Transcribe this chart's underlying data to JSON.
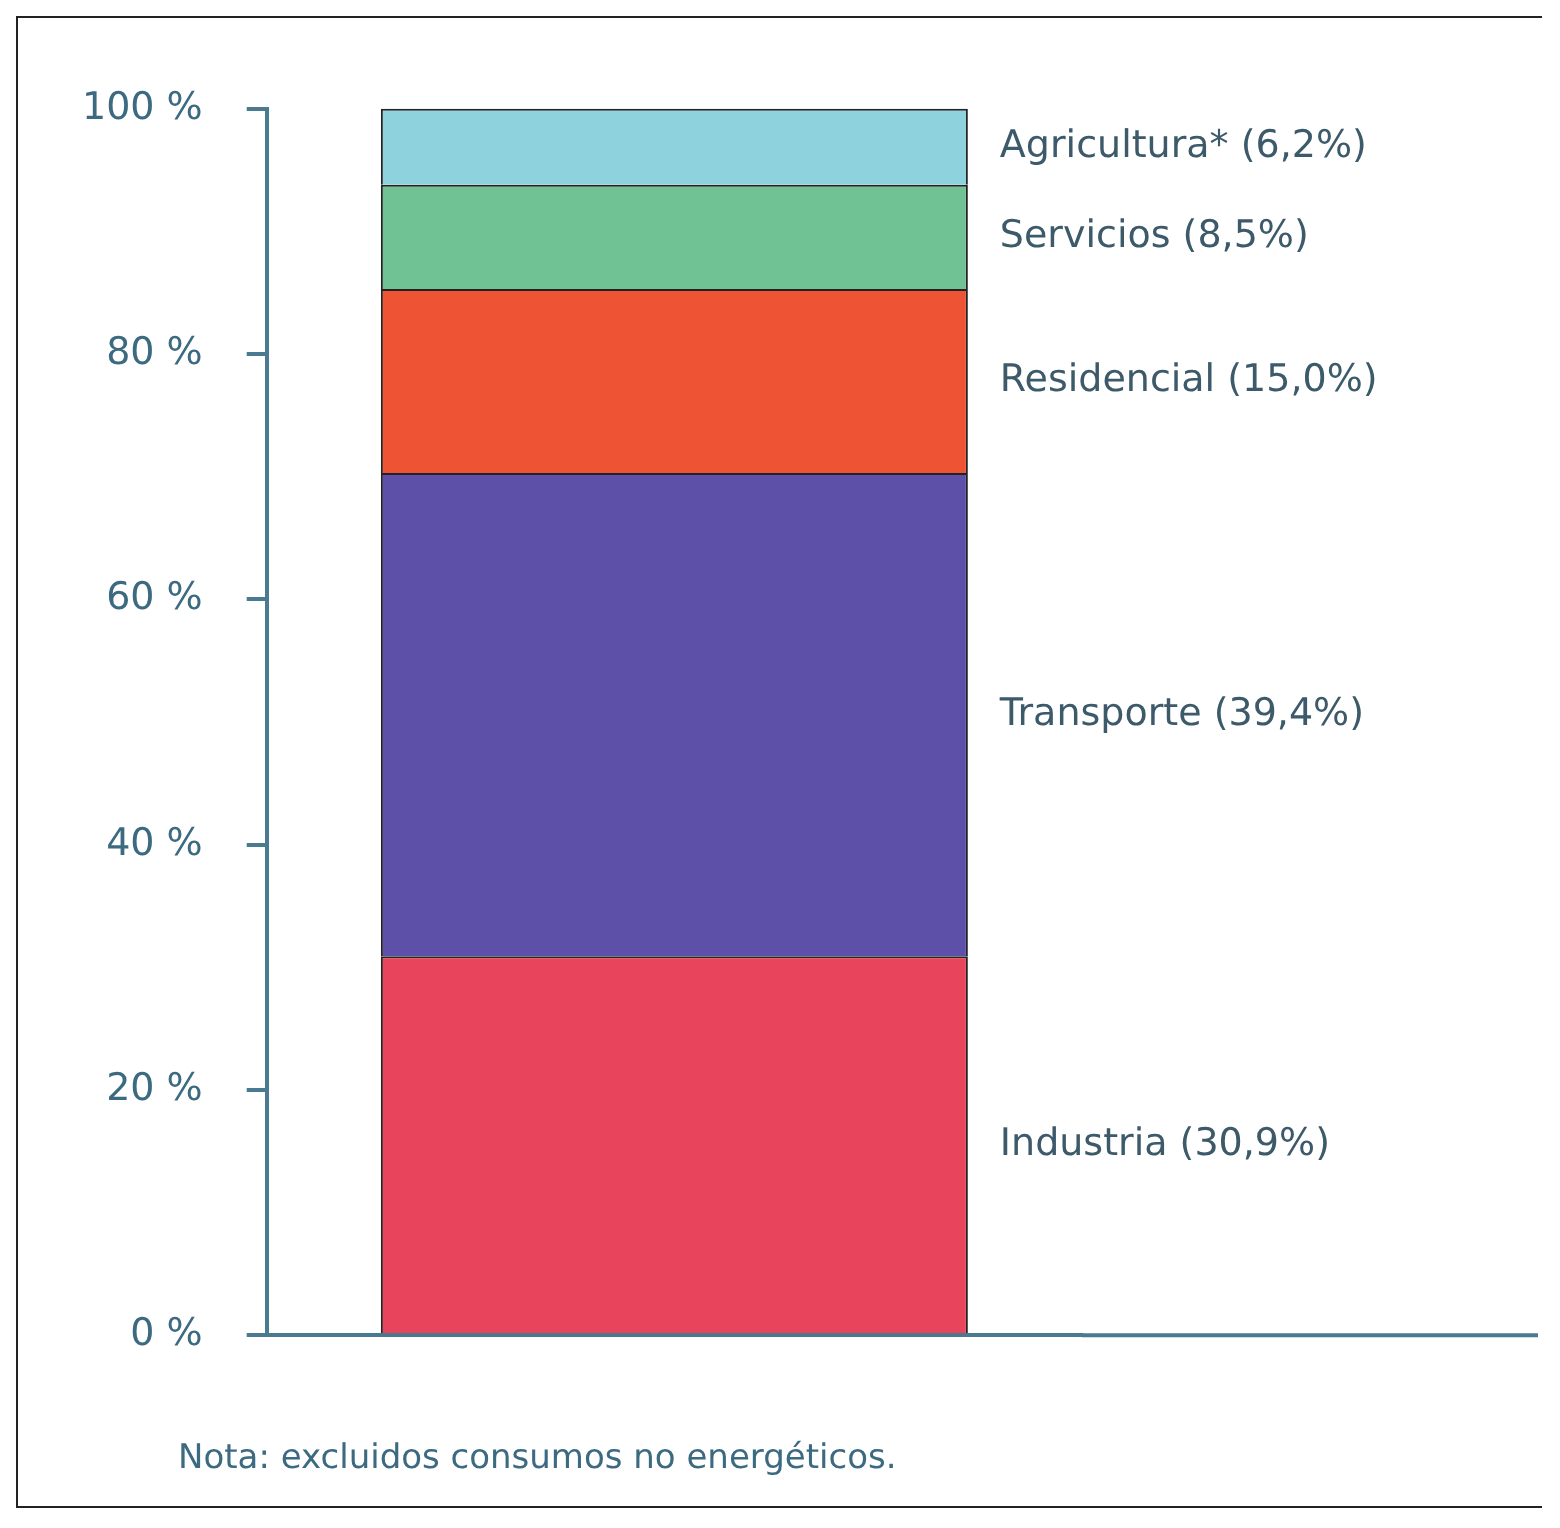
{
  "chart_data": {
    "type": "bar",
    "stacked": true,
    "categories": [
      null
    ],
    "series": [
      {
        "name": "Industria (30,9%)",
        "color": "#e8445c",
        "values": [
          30.9
        ]
      },
      {
        "name": "Transporte (39,4%)",
        "color": "#5c50a8",
        "values": [
          39.4
        ]
      },
      {
        "name": "Residencial (15,0%)",
        "color": "#ee5434",
        "values": [
          15.0
        ]
      },
      {
        "name": "Servicios (8,5%)",
        "color": "#70c294",
        "values": [
          8.5
        ]
      },
      {
        "name": "Agricultura* (6,2%)",
        "color": "#8ed2de",
        "values": [
          6.2
        ]
      }
    ],
    "ylim": [
      0,
      100
    ],
    "yticks": [
      {
        "value": 0,
        "label": "0 %"
      },
      {
        "value": 20,
        "label": "20 %"
      },
      {
        "value": 40,
        "label": "40 %"
      },
      {
        "value": 60,
        "label": "60 %"
      },
      {
        "value": 80,
        "label": "80 %"
      },
      {
        "value": 100,
        "label": "100 %"
      }
    ],
    "grid": false,
    "legend": false,
    "annotations": [
      "Nota: excluidos consumos no energéticos."
    ]
  }
}
